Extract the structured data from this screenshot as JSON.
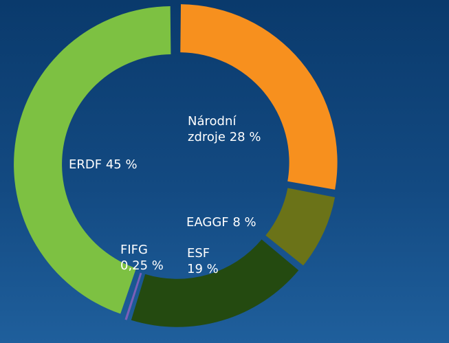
{
  "chart_data": {
    "type": "donut",
    "categories": [
      "Národní zdroje",
      "EAGGF",
      "ESF",
      "FIFG",
      "ERDF"
    ],
    "values": [
      28,
      8,
      19,
      0.25,
      45
    ],
    "value_labels": [
      "28 %",
      "8 %",
      "19 %",
      "0,25 %",
      "45 %"
    ],
    "colors": [
      "#f7901e",
      "#6b7318",
      "#244a10",
      "#7a5fb8",
      "#7dc142"
    ]
  }
}
